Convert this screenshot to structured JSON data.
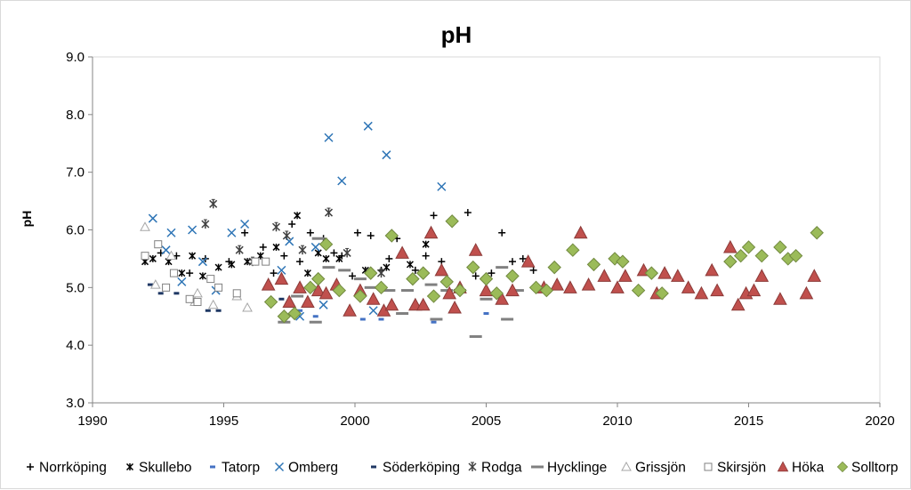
{
  "chart_data": {
    "type": "scatter",
    "title": "pH",
    "xlabel": "",
    "ylabel": "pH",
    "xlim": [
      1990,
      2020
    ],
    "ylim": [
      3.0,
      9.0
    ],
    "x_ticks": [
      "1990",
      "1995",
      "2000",
      "2005",
      "2010",
      "2015",
      "2020"
    ],
    "y_ticks": [
      "3.0",
      "4.0",
      "5.0",
      "6.0",
      "7.0",
      "8.0",
      "9.0"
    ],
    "grid": false,
    "legend_position": "bottom",
    "series": [
      {
        "name": "Norrköping",
        "marker": "plus",
        "color": "#000000",
        "points": [
          [
            1992.0,
            5.55
          ],
          [
            1992.6,
            5.6
          ],
          [
            1993.2,
            5.55
          ],
          [
            1993.7,
            5.25
          ],
          [
            1994.3,
            5.5
          ],
          [
            1995.2,
            5.45
          ],
          [
            1995.8,
            5.95
          ],
          [
            1996.5,
            5.7
          ],
          [
            1996.9,
            5.25
          ],
          [
            1997.3,
            5.55
          ],
          [
            1997.6,
            6.1
          ],
          [
            1997.9,
            5.45
          ],
          [
            1998.3,
            5.95
          ],
          [
            1998.8,
            5.85
          ],
          [
            1999.2,
            5.6
          ],
          [
            1999.5,
            5.55
          ],
          [
            1999.9,
            5.2
          ],
          [
            2000.1,
            5.95
          ],
          [
            2000.6,
            5.9
          ],
          [
            2001.0,
            5.3
          ],
          [
            2001.3,
            5.5
          ],
          [
            2001.6,
            5.85
          ],
          [
            2002.3,
            5.3
          ],
          [
            2002.7,
            5.55
          ],
          [
            2003.0,
            6.25
          ],
          [
            2003.3,
            5.45
          ],
          [
            2004.3,
            6.3
          ],
          [
            2004.6,
            5.2
          ],
          [
            2005.2,
            5.25
          ],
          [
            2005.6,
            5.95
          ],
          [
            2006.0,
            5.45
          ],
          [
            2006.4,
            5.5
          ],
          [
            2006.8,
            5.3
          ]
        ]
      },
      {
        "name": "Skullebo",
        "marker": "star",
        "color": "#000000",
        "points": [
          [
            1992.0,
            5.45
          ],
          [
            1992.3,
            5.5
          ],
          [
            1992.9,
            5.45
          ],
          [
            1993.4,
            5.25
          ],
          [
            1993.8,
            5.55
          ],
          [
            1994.2,
            5.2
          ],
          [
            1994.8,
            5.35
          ],
          [
            1995.3,
            5.4
          ],
          [
            1995.9,
            5.45
          ],
          [
            1996.4,
            5.55
          ],
          [
            1997.0,
            5.7
          ],
          [
            1997.8,
            6.25
          ],
          [
            1998.2,
            5.25
          ],
          [
            1998.6,
            5.6
          ],
          [
            1998.9,
            5.5
          ],
          [
            1999.4,
            5.5
          ],
          [
            2000.4,
            5.3
          ],
          [
            2001.2,
            5.35
          ],
          [
            2002.1,
            5.4
          ],
          [
            2002.7,
            5.75
          ]
        ]
      },
      {
        "name": "Tatorp",
        "marker": "dash",
        "color": "#4472c4",
        "points": [
          [
            1997.9,
            4.6
          ],
          [
            1998.5,
            4.5
          ],
          [
            2000.3,
            4.45
          ],
          [
            2001.0,
            4.45
          ],
          [
            2003.0,
            4.4
          ],
          [
            2005.0,
            4.55
          ]
        ]
      },
      {
        "name": "Omberg",
        "marker": "x",
        "color": "#2e75b6",
        "points": [
          [
            1992.3,
            6.2
          ],
          [
            1992.8,
            5.65
          ],
          [
            1993.0,
            5.95
          ],
          [
            1993.4,
            5.1
          ],
          [
            1993.8,
            6.0
          ],
          [
            1994.2,
            5.45
          ],
          [
            1994.7,
            4.95
          ],
          [
            1995.3,
            5.95
          ],
          [
            1995.8,
            6.1
          ],
          [
            1997.2,
            5.3
          ],
          [
            1997.5,
            5.8
          ],
          [
            1998.5,
            5.7
          ],
          [
            1998.8,
            4.7
          ],
          [
            1999.0,
            7.6
          ],
          [
            1999.5,
            6.85
          ],
          [
            2000.5,
            7.8
          ],
          [
            2001.2,
            7.3
          ],
          [
            2003.3,
            6.75
          ],
          [
            2000.7,
            4.6
          ],
          [
            1997.9,
            4.5
          ]
        ]
      },
      {
        "name": "Söderköping",
        "marker": "dash",
        "color": "#1f3864",
        "points": [
          [
            1992.2,
            5.05
          ],
          [
            1992.6,
            4.9
          ],
          [
            1993.2,
            4.9
          ],
          [
            1994.4,
            4.6
          ],
          [
            1994.8,
            4.6
          ],
          [
            1997.2,
            4.8
          ]
        ]
      },
      {
        "name": "Rodga",
        "marker": "asterisk",
        "color": "#404040",
        "points": [
          [
            1994.3,
            6.1
          ],
          [
            1994.6,
            6.45
          ],
          [
            1995.6,
            5.65
          ],
          [
            1996.1,
            5.45
          ],
          [
            1997.0,
            6.05
          ],
          [
            1997.4,
            5.9
          ],
          [
            1998.0,
            5.65
          ],
          [
            1999.0,
            6.3
          ],
          [
            1999.7,
            5.6
          ],
          [
            2001.0,
            5.25
          ]
        ]
      },
      {
        "name": "Hycklinge",
        "marker": "longdash",
        "color": "#808080",
        "points": [
          [
            1997.8,
            4.85
          ],
          [
            1998.6,
            5.85
          ],
          [
            1999.0,
            5.35
          ],
          [
            1999.6,
            5.3
          ],
          [
            2000.2,
            5.15
          ],
          [
            2000.6,
            5.0
          ],
          [
            2001.3,
            4.95
          ],
          [
            2002.0,
            4.95
          ],
          [
            2002.9,
            5.05
          ],
          [
            2003.5,
            4.95
          ],
          [
            2004.0,
            4.95
          ],
          [
            2004.6,
            4.15
          ],
          [
            2005.0,
            4.8
          ],
          [
            2005.6,
            5.35
          ],
          [
            2006.2,
            4.95
          ],
          [
            1997.3,
            4.4
          ],
          [
            1998.5,
            4.4
          ],
          [
            2001.8,
            4.55
          ],
          [
            2003.1,
            4.45
          ],
          [
            2005.8,
            4.45
          ]
        ]
      },
      {
        "name": "Grissjön",
        "marker": "triangle-open",
        "color": "#a6a6a6",
        "points": [
          [
            1992.0,
            6.05
          ],
          [
            1992.4,
            5.05
          ],
          [
            1993.0,
            5.55
          ],
          [
            1993.9,
            4.75
          ],
          [
            1994.0,
            4.9
          ],
          [
            1994.6,
            4.7
          ],
          [
            1995.5,
            4.85
          ],
          [
            1995.9,
            4.65
          ]
        ]
      },
      {
        "name": "Skirsjön",
        "marker": "square-open",
        "color": "#808080",
        "points": [
          [
            1992.0,
            5.55
          ],
          [
            1992.5,
            5.75
          ],
          [
            1992.8,
            5.0
          ],
          [
            1993.1,
            5.25
          ],
          [
            1993.7,
            4.8
          ],
          [
            1994.0,
            4.75
          ],
          [
            1994.5,
            5.15
          ],
          [
            1994.8,
            5.0
          ],
          [
            1995.5,
            4.9
          ],
          [
            1996.2,
            5.45
          ],
          [
            1996.6,
            5.45
          ]
        ]
      },
      {
        "name": "Höka",
        "marker": "triangle",
        "color": "#c0504d",
        "points": [
          [
            1996.7,
            5.05
          ],
          [
            1997.2,
            5.15
          ],
          [
            1997.5,
            4.75
          ],
          [
            1997.9,
            5.0
          ],
          [
            1998.2,
            4.75
          ],
          [
            1998.6,
            4.95
          ],
          [
            1998.9,
            4.9
          ],
          [
            1999.3,
            5.05
          ],
          [
            1999.8,
            4.6
          ],
          [
            2000.2,
            4.95
          ],
          [
            2000.7,
            4.8
          ],
          [
            2001.1,
            4.6
          ],
          [
            2001.4,
            4.7
          ],
          [
            2001.8,
            5.6
          ],
          [
            2002.3,
            4.7
          ],
          [
            2002.6,
            4.7
          ],
          [
            2002.9,
            5.95
          ],
          [
            2003.3,
            5.3
          ],
          [
            2003.6,
            4.9
          ],
          [
            2003.8,
            4.65
          ],
          [
            2004.0,
            5.0
          ],
          [
            2004.6,
            5.65
          ],
          [
            2005.0,
            4.95
          ],
          [
            2005.6,
            4.8
          ],
          [
            2006.0,
            4.95
          ],
          [
            2006.6,
            5.45
          ],
          [
            2007.2,
            5.0
          ],
          [
            2007.7,
            5.05
          ],
          [
            2008.2,
            5.0
          ],
          [
            2008.6,
            5.95
          ],
          [
            2008.9,
            5.05
          ],
          [
            2009.5,
            5.2
          ],
          [
            2010.0,
            5.0
          ],
          [
            2010.3,
            5.2
          ],
          [
            2011.0,
            5.3
          ],
          [
            2011.5,
            4.9
          ],
          [
            2011.8,
            5.25
          ],
          [
            2012.3,
            5.2
          ],
          [
            2012.7,
            5.0
          ],
          [
            2013.2,
            4.9
          ],
          [
            2013.6,
            5.3
          ],
          [
            2013.8,
            4.95
          ],
          [
            2014.3,
            5.7
          ],
          [
            2014.6,
            4.7
          ],
          [
            2014.9,
            4.9
          ],
          [
            2015.2,
            4.95
          ],
          [
            2015.5,
            5.2
          ],
          [
            2016.2,
            4.8
          ],
          [
            2017.2,
            4.9
          ],
          [
            2017.5,
            5.2
          ]
        ]
      },
      {
        "name": "Solltorp",
        "marker": "diamond",
        "color": "#9bbb59",
        "points": [
          [
            1996.8,
            4.75
          ],
          [
            1997.3,
            4.5
          ],
          [
            1997.7,
            4.55
          ],
          [
            1998.3,
            5.0
          ],
          [
            1998.6,
            5.15
          ],
          [
            1998.9,
            5.75
          ],
          [
            1999.4,
            4.95
          ],
          [
            2000.2,
            4.85
          ],
          [
            2000.6,
            5.25
          ],
          [
            2001.0,
            5.0
          ],
          [
            2001.4,
            5.9
          ],
          [
            2002.2,
            5.15
          ],
          [
            2002.6,
            5.25
          ],
          [
            2003.0,
            4.85
          ],
          [
            2003.5,
            5.1
          ],
          [
            2003.7,
            6.15
          ],
          [
            2004.0,
            4.95
          ],
          [
            2004.5,
            5.35
          ],
          [
            2005.0,
            5.15
          ],
          [
            2005.4,
            4.9
          ],
          [
            2006.0,
            5.2
          ],
          [
            2006.9,
            5.0
          ],
          [
            2007.3,
            4.95
          ],
          [
            2007.6,
            5.35
          ],
          [
            2008.3,
            5.65
          ],
          [
            2009.1,
            5.4
          ],
          [
            2009.9,
            5.5
          ],
          [
            2010.2,
            5.45
          ],
          [
            2010.8,
            4.95
          ],
          [
            2011.3,
            5.25
          ],
          [
            2011.7,
            4.9
          ],
          [
            2014.3,
            5.45
          ],
          [
            2014.7,
            5.55
          ],
          [
            2015.0,
            5.7
          ],
          [
            2015.5,
            5.55
          ],
          [
            2016.2,
            5.7
          ],
          [
            2016.5,
            5.5
          ],
          [
            2016.8,
            5.55
          ],
          [
            2017.6,
            5.95
          ]
        ]
      }
    ]
  }
}
